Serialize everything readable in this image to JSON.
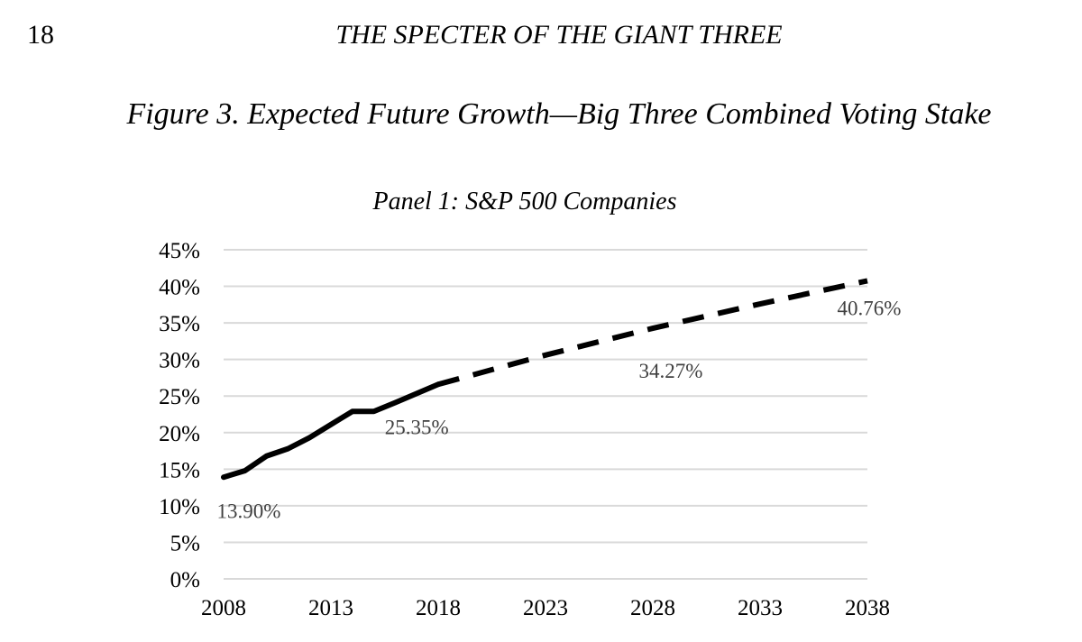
{
  "page": {
    "number": "18",
    "running_head": "THE SPECTER OF THE GIANT THREE",
    "figure_title": "Figure 3. Expected Future Growth—Big Three Combined Voting Stake"
  },
  "chart_data": {
    "type": "line",
    "title": "Panel 1: S&P 500 Companies",
    "xlabel": "",
    "ylabel": "",
    "xlim": [
      2008,
      2038
    ],
    "ylim": [
      0,
      45
    ],
    "x_ticks": [
      2008,
      2013,
      2018,
      2023,
      2028,
      2033,
      2038
    ],
    "y_ticks": [
      0,
      5,
      10,
      15,
      20,
      25,
      30,
      35,
      40,
      45
    ],
    "y_tick_labels": [
      "0%",
      "5%",
      "10%",
      "15%",
      "20%",
      "25%",
      "30%",
      "35%",
      "40%",
      "45%"
    ],
    "grid": "horizontal",
    "line_color": "#000000",
    "series": [
      {
        "style": "solid",
        "x": [
          2008,
          2009,
          2010,
          2011,
          2012,
          2013,
          2014,
          2015,
          2016,
          2017,
          2018
        ],
        "y": [
          13.9,
          14.8,
          16.8,
          17.8,
          19.3,
          21.1,
          22.9,
          22.9,
          24.1,
          25.35,
          26.6
        ]
      },
      {
        "style": "dashed",
        "x": [
          2018,
          2023,
          2028,
          2033,
          2038
        ],
        "y": [
          26.6,
          30.6,
          34.27,
          37.6,
          40.76
        ]
      }
    ],
    "annotations": [
      {
        "text": "13.90%",
        "x": 2008,
        "y": 13.9
      },
      {
        "text": "25.35%",
        "x": 2017,
        "y": 25.35
      },
      {
        "text": "34.27%",
        "x": 2028,
        "y": 34.27
      },
      {
        "text": "40.76%",
        "x": 2038,
        "y": 40.76
      }
    ]
  }
}
